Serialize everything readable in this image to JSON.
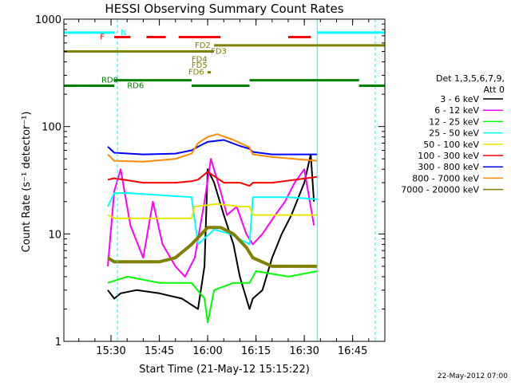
{
  "chart_data": {
    "type": "line",
    "title": "HESSI Observing Summary Count Rates",
    "xlabel": "Start Time (21-May-12 15:15:22)",
    "ylabel": "Count Rate (s⁻¹ detector⁻¹)",
    "yscale": "log",
    "ylim": [
      1,
      1000
    ],
    "y_ticks": [
      {
        "value": 1,
        "label": "1"
      },
      {
        "value": 10,
        "label": "10"
      },
      {
        "value": 100,
        "label": "100"
      },
      {
        "value": 1000,
        "label": "1000"
      }
    ],
    "x_range": [
      "15:15:22",
      "16:55"
    ],
    "x_ticks": [
      "15:30",
      "15:45",
      "16:00",
      "16:15",
      "16:30",
      "16:45"
    ],
    "date_stamp": "22-May-2012 07:00",
    "legend_position": "right",
    "legend_header": [
      "Det 1,3,5,6,7,9,",
      "Att 0"
    ],
    "legend": [
      {
        "name": "3 - 6 keV",
        "color": "#000000"
      },
      {
        "name": "6 - 12 keV",
        "color": "#ff00ff"
      },
      {
        "name": "12 - 25 keV",
        "color": "#00ff00"
      },
      {
        "name": "25 - 50 keV",
        "color": "#00ffff"
      },
      {
        "name": "50 - 100 keV",
        "color": "#e8e800"
      },
      {
        "name": "100 - 300 keV",
        "color": "#ff0000"
      },
      {
        "name": "300 - 800 keV",
        "color": "#0000ff"
      },
      {
        "name": "800 - 7000 keV",
        "color": "#ff8c00"
      },
      {
        "name": "7000 - 20000 keV",
        "color": "#808000"
      }
    ],
    "flags": [
      {
        "label": "N",
        "color": "#00ffff",
        "y": 750,
        "segments": [
          [
            "15:15:22",
            "15:31"
          ],
          [
            "16:34",
            "16:55"
          ]
        ]
      },
      {
        "label": "F",
        "color": "#ff0000",
        "y": 680,
        "segments": [
          [
            "15:31",
            "15:36"
          ],
          [
            "15:41",
            "15:47"
          ],
          [
            "15:51",
            "16:04"
          ],
          [
            "16:25",
            "16:32"
          ]
        ]
      },
      {
        "label": "FD2",
        "color": "#808000",
        "y": 570,
        "segments": [
          [
            "16:02",
            "16:55"
          ]
        ]
      },
      {
        "label": "FD3",
        "color": "#808000",
        "y": 500,
        "segments": [
          [
            "15:15:22",
            "16:02"
          ]
        ]
      },
      {
        "label": "FD4",
        "color": "#808000",
        "y": 420,
        "segments": []
      },
      {
        "label": "FD5",
        "color": "#808000",
        "y": 370,
        "segments": []
      },
      {
        "label": "FD6",
        "color": "#808000",
        "y": 320,
        "segments": [
          [
            "16:00",
            "16:01"
          ]
        ]
      },
      {
        "label": "RD0",
        "color": "#008000",
        "y": 270,
        "segments": [
          [
            "15:31",
            "15:55"
          ],
          [
            "16:13",
            "16:47"
          ]
        ]
      },
      {
        "label": "RD6",
        "color": "#008000",
        "y": 240,
        "segments": [
          [
            "15:15:22",
            "15:31"
          ],
          [
            "15:55",
            "16:13"
          ],
          [
            "16:47",
            "16:55"
          ]
        ]
      }
    ],
    "vlines": [
      {
        "time": "15:15:22",
        "color": "#00ffff",
        "style": "solid"
      },
      {
        "time": "15:32",
        "color": "#00ffff",
        "style": "dashed"
      },
      {
        "time": "16:34",
        "color": "#00ffff",
        "style": "solid"
      },
      {
        "time": "16:52",
        "color": "#00ffff",
        "style": "dashed"
      }
    ],
    "series": [
      {
        "name": "3 - 6 keV",
        "color": "#000000",
        "x": [
          "15:29",
          "15:31",
          "15:33",
          "15:38",
          "15:45",
          "15:52",
          "15:57",
          "15:59",
          "16:00",
          "16:02",
          "16:05",
          "16:08",
          "16:10",
          "16:13",
          "16:14",
          "16:17",
          "16:20",
          "16:23",
          "16:26",
          "16:30",
          "16:32",
          "16:33"
        ],
        "y": [
          3,
          2.5,
          2.8,
          3,
          2.8,
          2.5,
          2,
          5,
          40,
          30,
          15,
          8,
          4,
          2,
          2.5,
          3,
          6,
          10,
          15,
          30,
          55,
          20
        ]
      },
      {
        "name": "6 - 12 keV",
        "color": "#ff00ff",
        "x": [
          "15:29",
          "15:31",
          "15:33",
          "15:36",
          "15:40",
          "15:43",
          "15:46",
          "15:50",
          "15:53",
          "15:56",
          "15:59",
          "16:01",
          "16:04",
          "16:06",
          "16:09",
          "16:12",
          "16:14",
          "16:17",
          "16:21",
          "16:24",
          "16:27",
          "16:30",
          "16:33"
        ],
        "y": [
          5,
          25,
          40,
          12,
          6,
          20,
          8,
          5,
          4,
          6,
          20,
          50,
          25,
          15,
          18,
          10,
          8,
          10,
          15,
          20,
          30,
          40,
          12
        ]
      },
      {
        "name": "12 - 25 keV",
        "color": "#00ff00",
        "x": [
          "15:29",
          "15:35",
          "15:45",
          "15:55",
          "15:59",
          "16:00",
          "16:02",
          "16:08",
          "16:13",
          "16:15",
          "16:25",
          "16:34"
        ],
        "y": [
          3.5,
          4,
          3.5,
          3.5,
          2.5,
          1.5,
          3,
          3.5,
          3.5,
          4.5,
          4,
          4.5
        ]
      },
      {
        "name": "25 - 50 keV",
        "color": "#00ffff",
        "x": [
          "15:29",
          "15:31",
          "15:35",
          "15:45",
          "15:55",
          "15:57",
          "16:02",
          "16:07",
          "16:13",
          "16:14",
          "16:25",
          "16:34"
        ],
        "y": [
          18,
          24,
          24,
          23,
          22,
          8,
          11,
          10,
          8,
          22,
          22,
          21
        ]
      },
      {
        "name": "50 - 100 keV",
        "color": "#e8e800",
        "x": [
          "15:29",
          "15:31",
          "15:40",
          "15:50",
          "15:55",
          "15:56",
          "16:03",
          "16:10",
          "16:13",
          "16:14",
          "16:25",
          "16:34"
        ],
        "y": [
          15,
          14,
          14,
          14,
          14,
          18,
          19,
          18,
          18,
          15,
          15,
          15
        ]
      },
      {
        "name": "100 - 300 keV",
        "color": "#ff0000",
        "x": [
          "15:29",
          "15:31",
          "15:40",
          "15:50",
          "15:55",
          "15:57",
          "16:00",
          "16:05",
          "16:10",
          "16:13",
          "16:14",
          "16:20",
          "16:34"
        ],
        "y": [
          32,
          33,
          30,
          30,
          31,
          32,
          38,
          30,
          30,
          28,
          30,
          30,
          34
        ]
      },
      {
        "name": "300 - 800 keV",
        "color": "#0000ff",
        "x": [
          "15:29",
          "15:31",
          "15:40",
          "15:50",
          "15:55",
          "15:57",
          "16:00",
          "16:05",
          "16:10",
          "16:13",
          "16:14",
          "16:20",
          "16:34"
        ],
        "y": [
          65,
          57,
          55,
          56,
          60,
          65,
          72,
          75,
          66,
          62,
          58,
          55,
          55
        ]
      },
      {
        "name": "800 - 7000 keV",
        "color": "#ff8c00",
        "x": [
          "15:29",
          "15:31",
          "15:40",
          "15:50",
          "15:55",
          "15:57",
          "16:00",
          "16:03",
          "16:08",
          "16:13",
          "16:14",
          "16:20",
          "16:34"
        ],
        "y": [
          55,
          48,
          47,
          50,
          56,
          70,
          80,
          85,
          75,
          64,
          55,
          52,
          48
        ]
      },
      {
        "name": "7000 - 20000 keV",
        "color": "#808000",
        "x": [
          "15:29",
          "15:31",
          "15:40",
          "15:45",
          "15:50",
          "15:55",
          "16:00",
          "16:04",
          "16:08",
          "16:12",
          "16:14",
          "16:20",
          "16:34"
        ],
        "y": [
          6,
          5.5,
          5.5,
          5.5,
          6,
          8,
          11.5,
          11.5,
          10,
          7.5,
          6,
          5,
          5
        ]
      }
    ]
  }
}
